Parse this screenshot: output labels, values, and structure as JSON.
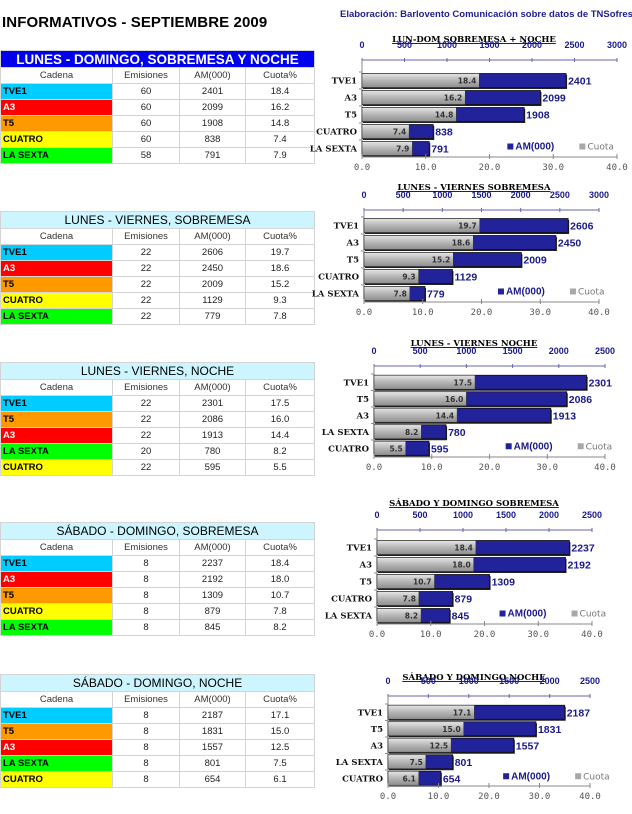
{
  "page": {
    "title": "INFORMATIVOS - SEPTIEMBRE 2009",
    "credit": "Elaboración: Barlovento Comunicación sobre datos de TNSofres"
  },
  "colors": {
    "TVE1": "#00ccff",
    "A3": "#ff0000",
    "T5": "#ff9900",
    "CUATRO": "#ffff00",
    "LA SEXTA": "#00ff00",
    "am_bar": "#22229a",
    "cuota_bar": "#b8b8b8",
    "axis": "#1a1a8a"
  },
  "columns": [
    "Cadena",
    "Emisiones",
    "AM(000)",
    "Cuota%"
  ],
  "tables": [
    {
      "title": "LUNES - DOMINGO, SOBREMESA Y NOCHE",
      "rows": [
        {
          "cadena": "TVE1",
          "emisiones": "60",
          "am": "2401",
          "cuota": "18.4"
        },
        {
          "cadena": "A3",
          "emisiones": "60",
          "am": "2099",
          "cuota": "16.2"
        },
        {
          "cadena": "T5",
          "emisiones": "60",
          "am": "1908",
          "cuota": "14.8"
        },
        {
          "cadena": "CUATRO",
          "emisiones": "60",
          "am": "838",
          "cuota": "7.4"
        },
        {
          "cadena": "LA SEXTA",
          "emisiones": "58",
          "am": "791",
          "cuota": "7.9"
        }
      ]
    },
    {
      "title": "LUNES - VIERNES, SOBREMESA",
      "rows": [
        {
          "cadena": "TVE1",
          "emisiones": "22",
          "am": "2606",
          "cuota": "19.7"
        },
        {
          "cadena": "A3",
          "emisiones": "22",
          "am": "2450",
          "cuota": "18.6"
        },
        {
          "cadena": "T5",
          "emisiones": "22",
          "am": "2009",
          "cuota": "15.2"
        },
        {
          "cadena": "CUATRO",
          "emisiones": "22",
          "am": "1129",
          "cuota": "9.3"
        },
        {
          "cadena": "LA SEXTA",
          "emisiones": "22",
          "am": "779",
          "cuota": "7.8"
        }
      ]
    },
    {
      "title": "LUNES - VIERNES, NOCHE",
      "rows": [
        {
          "cadena": "TVE1",
          "emisiones": "22",
          "am": "2301",
          "cuota": "17.5"
        },
        {
          "cadena": "T5",
          "emisiones": "22",
          "am": "2086",
          "cuota": "16.0"
        },
        {
          "cadena": "A3",
          "emisiones": "22",
          "am": "1913",
          "cuota": "14.4"
        },
        {
          "cadena": "LA SEXTA",
          "emisiones": "20",
          "am": "780",
          "cuota": "8.2"
        },
        {
          "cadena": "CUATRO",
          "emisiones": "22",
          "am": "595",
          "cuota": "5.5"
        }
      ]
    },
    {
      "title": "SÁBADO - DOMINGO, SOBREMESA",
      "rows": [
        {
          "cadena": "TVE1",
          "emisiones": "8",
          "am": "2237",
          "cuota": "18.4"
        },
        {
          "cadena": "A3",
          "emisiones": "8",
          "am": "2192",
          "cuota": "18.0"
        },
        {
          "cadena": "T5",
          "emisiones": "8",
          "am": "1309",
          "cuota": "10.7"
        },
        {
          "cadena": "CUATRO",
          "emisiones": "8",
          "am": "879",
          "cuota": "7.8"
        },
        {
          "cadena": "LA SEXTA",
          "emisiones": "8",
          "am": "845",
          "cuota": "8.2"
        }
      ]
    },
    {
      "title": "SÁBADO - DOMINGO, NOCHE",
      "rows": [
        {
          "cadena": "TVE1",
          "emisiones": "8",
          "am": "2187",
          "cuota": "17.1"
        },
        {
          "cadena": "T5",
          "emisiones": "8",
          "am": "1831",
          "cuota": "15.0"
        },
        {
          "cadena": "A3",
          "emisiones": "8",
          "am": "1557",
          "cuota": "12.5"
        },
        {
          "cadena": "LA SEXTA",
          "emisiones": "8",
          "am": "801",
          "cuota": "7.5"
        },
        {
          "cadena": "CUATRO",
          "emisiones": "8",
          "am": "654",
          "cuota": "6.1"
        }
      ]
    }
  ],
  "chart_data": [
    {
      "type": "bar",
      "orientation": "horizontal",
      "title": "LUN-DOM SOBREMESA + NOCHE",
      "categories": [
        "TVE1",
        "A3",
        "T5",
        "CUATRO",
        "LA SEXTA"
      ],
      "series": [
        {
          "name": "AM(000)",
          "axis": "top",
          "values": [
            2401,
            2099,
            1908,
            838,
            791
          ]
        },
        {
          "name": "Cuota",
          "axis": "bottom",
          "values": [
            18.4,
            16.2,
            14.8,
            7.4,
            7.9
          ]
        }
      ],
      "top_axis": {
        "range": [
          0,
          3000
        ],
        "ticks": [
          "0",
          "500",
          "1000",
          "1500",
          "2000",
          "2500",
          "3000"
        ]
      },
      "bottom_axis": {
        "range": [
          0,
          40
        ],
        "ticks": [
          "0.0",
          "10.0",
          "20.0",
          "30.0",
          "40.0"
        ]
      },
      "legend": [
        "AM(000)",
        "Cuota"
      ],
      "legend_position": "bottom-right"
    },
    {
      "type": "bar",
      "orientation": "horizontal",
      "title": "LUNES - VIERNES SOBREMESA",
      "categories": [
        "TVE1",
        "A3",
        "T5",
        "CUATRO",
        "LA SEXTA"
      ],
      "series": [
        {
          "name": "AM(000)",
          "axis": "top",
          "values": [
            2606,
            2450,
            2009,
            1129,
            779
          ]
        },
        {
          "name": "Cuota",
          "axis": "bottom",
          "values": [
            19.7,
            18.6,
            15.2,
            9.3,
            7.8
          ]
        }
      ],
      "top_axis": {
        "range": [
          0,
          3000
        ],
        "ticks": [
          "0",
          "500",
          "1000",
          "1500",
          "2000",
          "2500",
          "3000"
        ]
      },
      "bottom_axis": {
        "range": [
          0,
          40
        ],
        "ticks": [
          "0.0",
          "10.0",
          "20.0",
          "30.0",
          "40.0"
        ]
      },
      "legend": [
        "AM(000)",
        "Cuota"
      ],
      "legend_position": "bottom-right"
    },
    {
      "type": "bar",
      "orientation": "horizontal",
      "title": "LUNES - VIERNES  NOCHE",
      "categories": [
        "TVE1",
        "T5",
        "A3",
        "LA SEXTA",
        "CUATRO"
      ],
      "series": [
        {
          "name": "AM(000)",
          "axis": "top",
          "values": [
            2301,
            2086,
            1913,
            780,
            595
          ]
        },
        {
          "name": "Cuota",
          "axis": "bottom",
          "values": [
            17.5,
            16.0,
            14.4,
            8.2,
            5.5
          ]
        }
      ],
      "top_axis": {
        "range": [
          0,
          2500
        ],
        "ticks": [
          "0",
          "500",
          "1000",
          "1500",
          "2000",
          "2500"
        ]
      },
      "bottom_axis": {
        "range": [
          0,
          40
        ],
        "ticks": [
          "0.0",
          "10.0",
          "20.0",
          "30.0",
          "40.0"
        ]
      },
      "legend": [
        "AM(000)",
        "Cuota"
      ],
      "legend_position": "bottom-right"
    },
    {
      "type": "bar",
      "orientation": "horizontal",
      "title": "SÁBADO Y DOMINGO SOBREMESA",
      "categories": [
        "TVE1",
        "A3",
        "T5",
        "CUATRO",
        "LA SEXTA"
      ],
      "series": [
        {
          "name": "AM(000)",
          "axis": "top",
          "values": [
            2237,
            2192,
            1309,
            879,
            845
          ]
        },
        {
          "name": "Cuota",
          "axis": "bottom",
          "values": [
            18.4,
            18.0,
            10.7,
            7.8,
            8.2
          ]
        }
      ],
      "top_axis": {
        "range": [
          0,
          2500
        ],
        "ticks": [
          "0",
          "500",
          "1000",
          "1500",
          "2000",
          "2500"
        ]
      },
      "bottom_axis": {
        "range": [
          0,
          40
        ],
        "ticks": [
          "0.0",
          "10.0",
          "20.0",
          "30.0",
          "40.0"
        ]
      },
      "legend": [
        "AM(000)",
        "Cuota"
      ],
      "legend_position": "bottom-right"
    },
    {
      "type": "bar",
      "orientation": "horizontal",
      "title": "SÁBADO Y DOMINGO  NOCHE",
      "categories": [
        "TVE1",
        "T5",
        "A3",
        "LA SEXTA",
        "CUATRO"
      ],
      "series": [
        {
          "name": "AM(000)",
          "axis": "top",
          "values": [
            2187,
            1831,
            1557,
            801,
            654
          ]
        },
        {
          "name": "Cuota",
          "axis": "bottom",
          "values": [
            17.1,
            15.0,
            12.5,
            7.5,
            6.1
          ]
        }
      ],
      "top_axis": {
        "range": [
          0,
          2500
        ],
        "ticks": [
          "0",
          "500",
          "1000",
          "1500",
          "2000",
          "2500"
        ]
      },
      "bottom_axis": {
        "range": [
          0,
          40
        ],
        "ticks": [
          "0.0",
          "10.0",
          "20.0",
          "30.0",
          "40.0"
        ]
      },
      "legend": [
        "AM(000)",
        "Cuota"
      ],
      "legend_position": "bottom-right"
    }
  ]
}
